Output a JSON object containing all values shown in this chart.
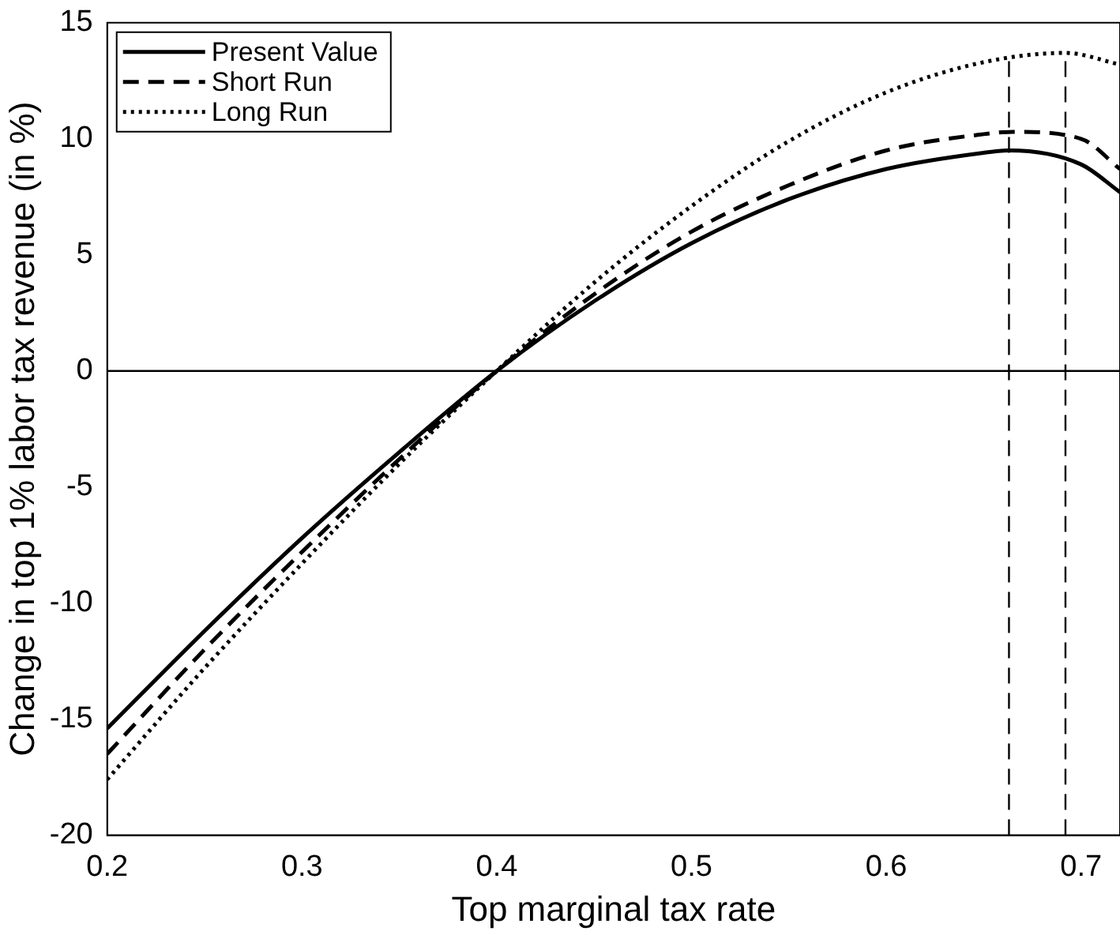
{
  "chart_data": {
    "type": "line",
    "xlabel": "Top marginal tax rate",
    "ylabel": "Change in top 1% labor tax revenue (in %)",
    "xlim": [
      0.2,
      0.72
    ],
    "xticks": [
      0.2,
      0.3,
      0.4,
      0.5,
      0.6,
      0.7
    ],
    "ylim": [
      -20,
      15
    ],
    "yticks": [
      -20,
      -15,
      -10,
      -5,
      0,
      5,
      10,
      15
    ],
    "grid": false,
    "legend": "top left",
    "marker": "none",
    "series": [
      {
        "name": "Present Value",
        "color": "#000000",
        "line_style": "solid",
        "x": [
          0.2,
          0.25,
          0.3,
          0.35,
          0.4,
          0.45,
          0.5,
          0.55,
          0.6,
          0.65,
          0.663,
          0.7,
          0.72
        ],
        "values": [
          -15.4,
          -11.2,
          -7.2,
          -3.5,
          0,
          3.0,
          5.5,
          7.4,
          8.7,
          9.4,
          9.5,
          8.9,
          7.7
        ]
      },
      {
        "name": "Short Run",
        "color": "#000000",
        "line_style": "dashed",
        "x": [
          0.2,
          0.25,
          0.3,
          0.35,
          0.4,
          0.45,
          0.5,
          0.55,
          0.6,
          0.65,
          0.665,
          0.7,
          0.72
        ],
        "values": [
          -16.5,
          -12.0,
          -7.8,
          -3.8,
          0,
          3.3,
          6.0,
          8.0,
          9.5,
          10.2,
          10.3,
          10.0,
          8.7
        ]
      },
      {
        "name": "Long Run",
        "color": "#000000",
        "line_style": "dotted",
        "x": [
          0.2,
          0.25,
          0.3,
          0.35,
          0.4,
          0.45,
          0.5,
          0.55,
          0.6,
          0.65,
          0.692,
          0.72
        ],
        "values": [
          -17.6,
          -12.8,
          -8.3,
          -4.0,
          0,
          3.8,
          7.1,
          9.9,
          12.0,
          13.3,
          13.7,
          13.2
        ]
      }
    ],
    "ref_lines": [
      {
        "axis": "y",
        "value": 0,
        "color": "#000000",
        "line_style": "solid"
      },
      {
        "axis": "x",
        "value": 0.663,
        "color": "#000000",
        "line_style": "dashed"
      },
      {
        "axis": "x",
        "value": 0.692,
        "color": "#000000",
        "line_style": "dashed"
      }
    ]
  }
}
